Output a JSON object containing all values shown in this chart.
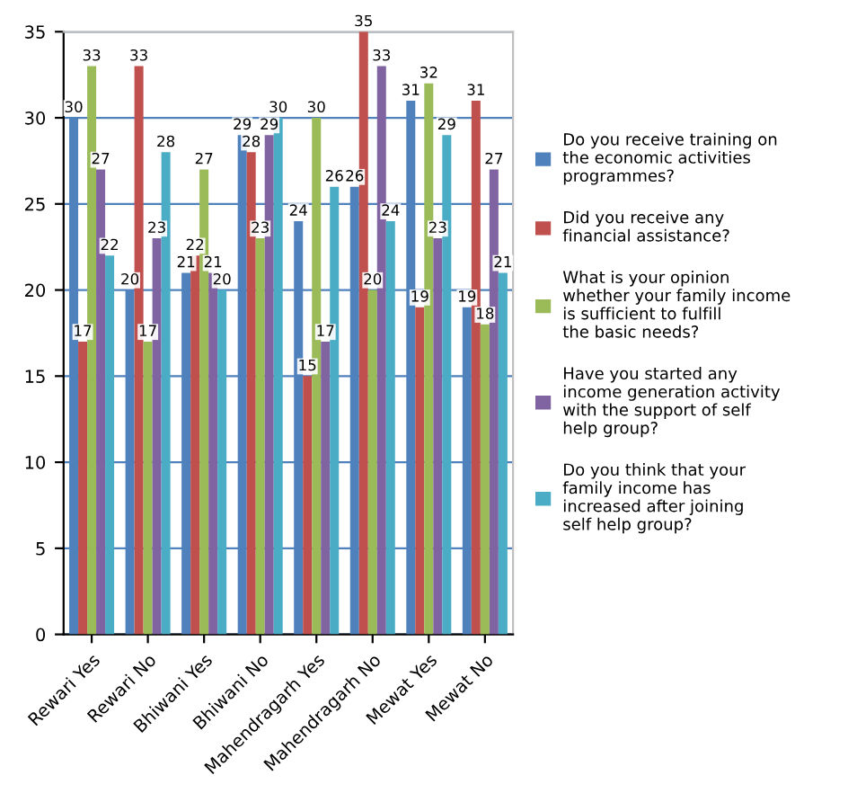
{
  "chart_data": {
    "type": "bar",
    "categories": [
      "Rewari Yes",
      "Rewari No",
      "Bhiwani Yes",
      "Bhiwani No",
      "Mahendragarh Yes",
      "Mahendragarh No",
      "Mewat Yes",
      "Mewat No"
    ],
    "series": [
      {
        "name": "Do you receive training on the economic activities programmes?",
        "color": "#4f81bd",
        "values": [
          30,
          20,
          21,
          29,
          24,
          26,
          31,
          19
        ]
      },
      {
        "name": "Did you receive any financial assistance?",
        "color": "#c0504d",
        "values": [
          17,
          33,
          22,
          28,
          15,
          35,
          19,
          31
        ]
      },
      {
        "name": "What is your opinion whether your family income is sufficient to fulfill the basic needs?",
        "color": "#9bbb59",
        "values": [
          33,
          17,
          27,
          23,
          30,
          20,
          32,
          18
        ]
      },
      {
        "name": "Have you started any income generation activity with the support of self help group?",
        "color": "#8064a2",
        "values": [
          27,
          23,
          21,
          29,
          17,
          33,
          23,
          27
        ]
      },
      {
        "name": "Do you think that your family income has increased after joining self help group?",
        "color": "#4bacc6",
        "values": [
          22,
          28,
          20,
          30,
          26,
          24,
          29,
          21
        ]
      }
    ],
    "ylim": [
      0,
      35
    ],
    "yticks": [
      0,
      5,
      10,
      15,
      20,
      25,
      30,
      35
    ],
    "grid": "y",
    "legend": "right",
    "data_labels": true
  }
}
